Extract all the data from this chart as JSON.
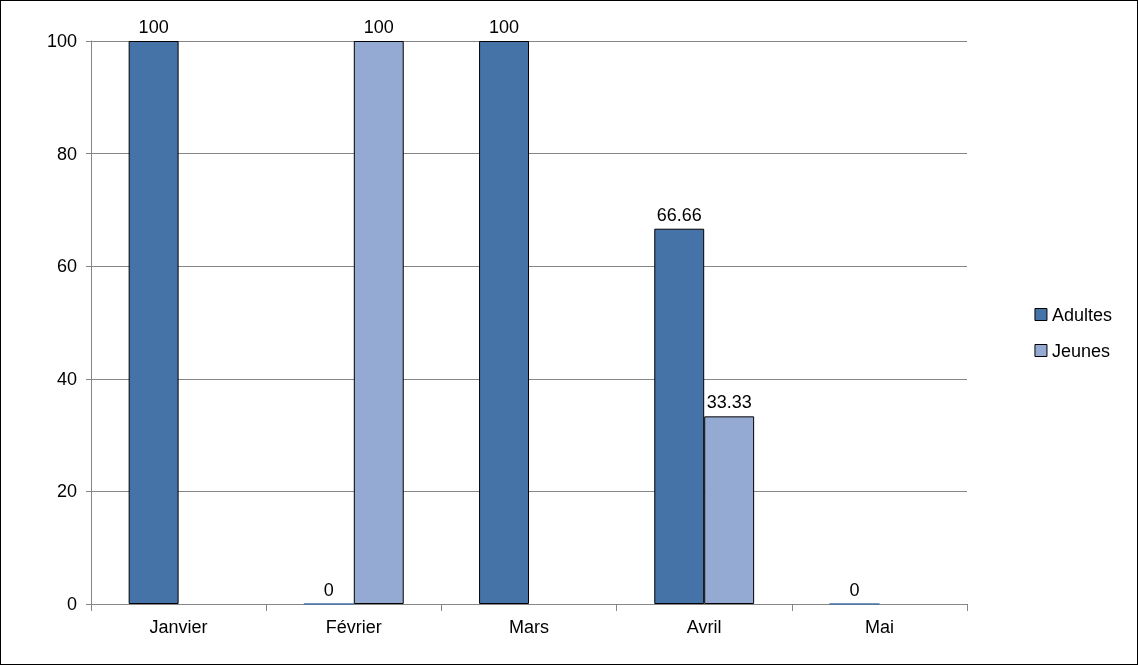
{
  "chart_data": {
    "type": "bar",
    "categories": [
      "Janvier",
      "Février",
      "Mars",
      "Avril",
      "Mai"
    ],
    "series": [
      {
        "name": "Adultes",
        "color": "#4573a7",
        "values": [
          100,
          0,
          100,
          66.66,
          0
        ],
        "value_labels": [
          "100",
          "0",
          "100",
          "66.66",
          "0"
        ]
      },
      {
        "name": "Jeunes",
        "color": "#95aad2",
        "values": [
          null,
          100,
          null,
          33.33,
          null
        ],
        "value_labels": [
          null,
          "100",
          null,
          "33.33",
          null
        ]
      }
    ],
    "ylim": [
      0,
      100
    ],
    "yticks": [
      0,
      20,
      40,
      60,
      80,
      100
    ],
    "grid": "y",
    "legend": "right"
  }
}
